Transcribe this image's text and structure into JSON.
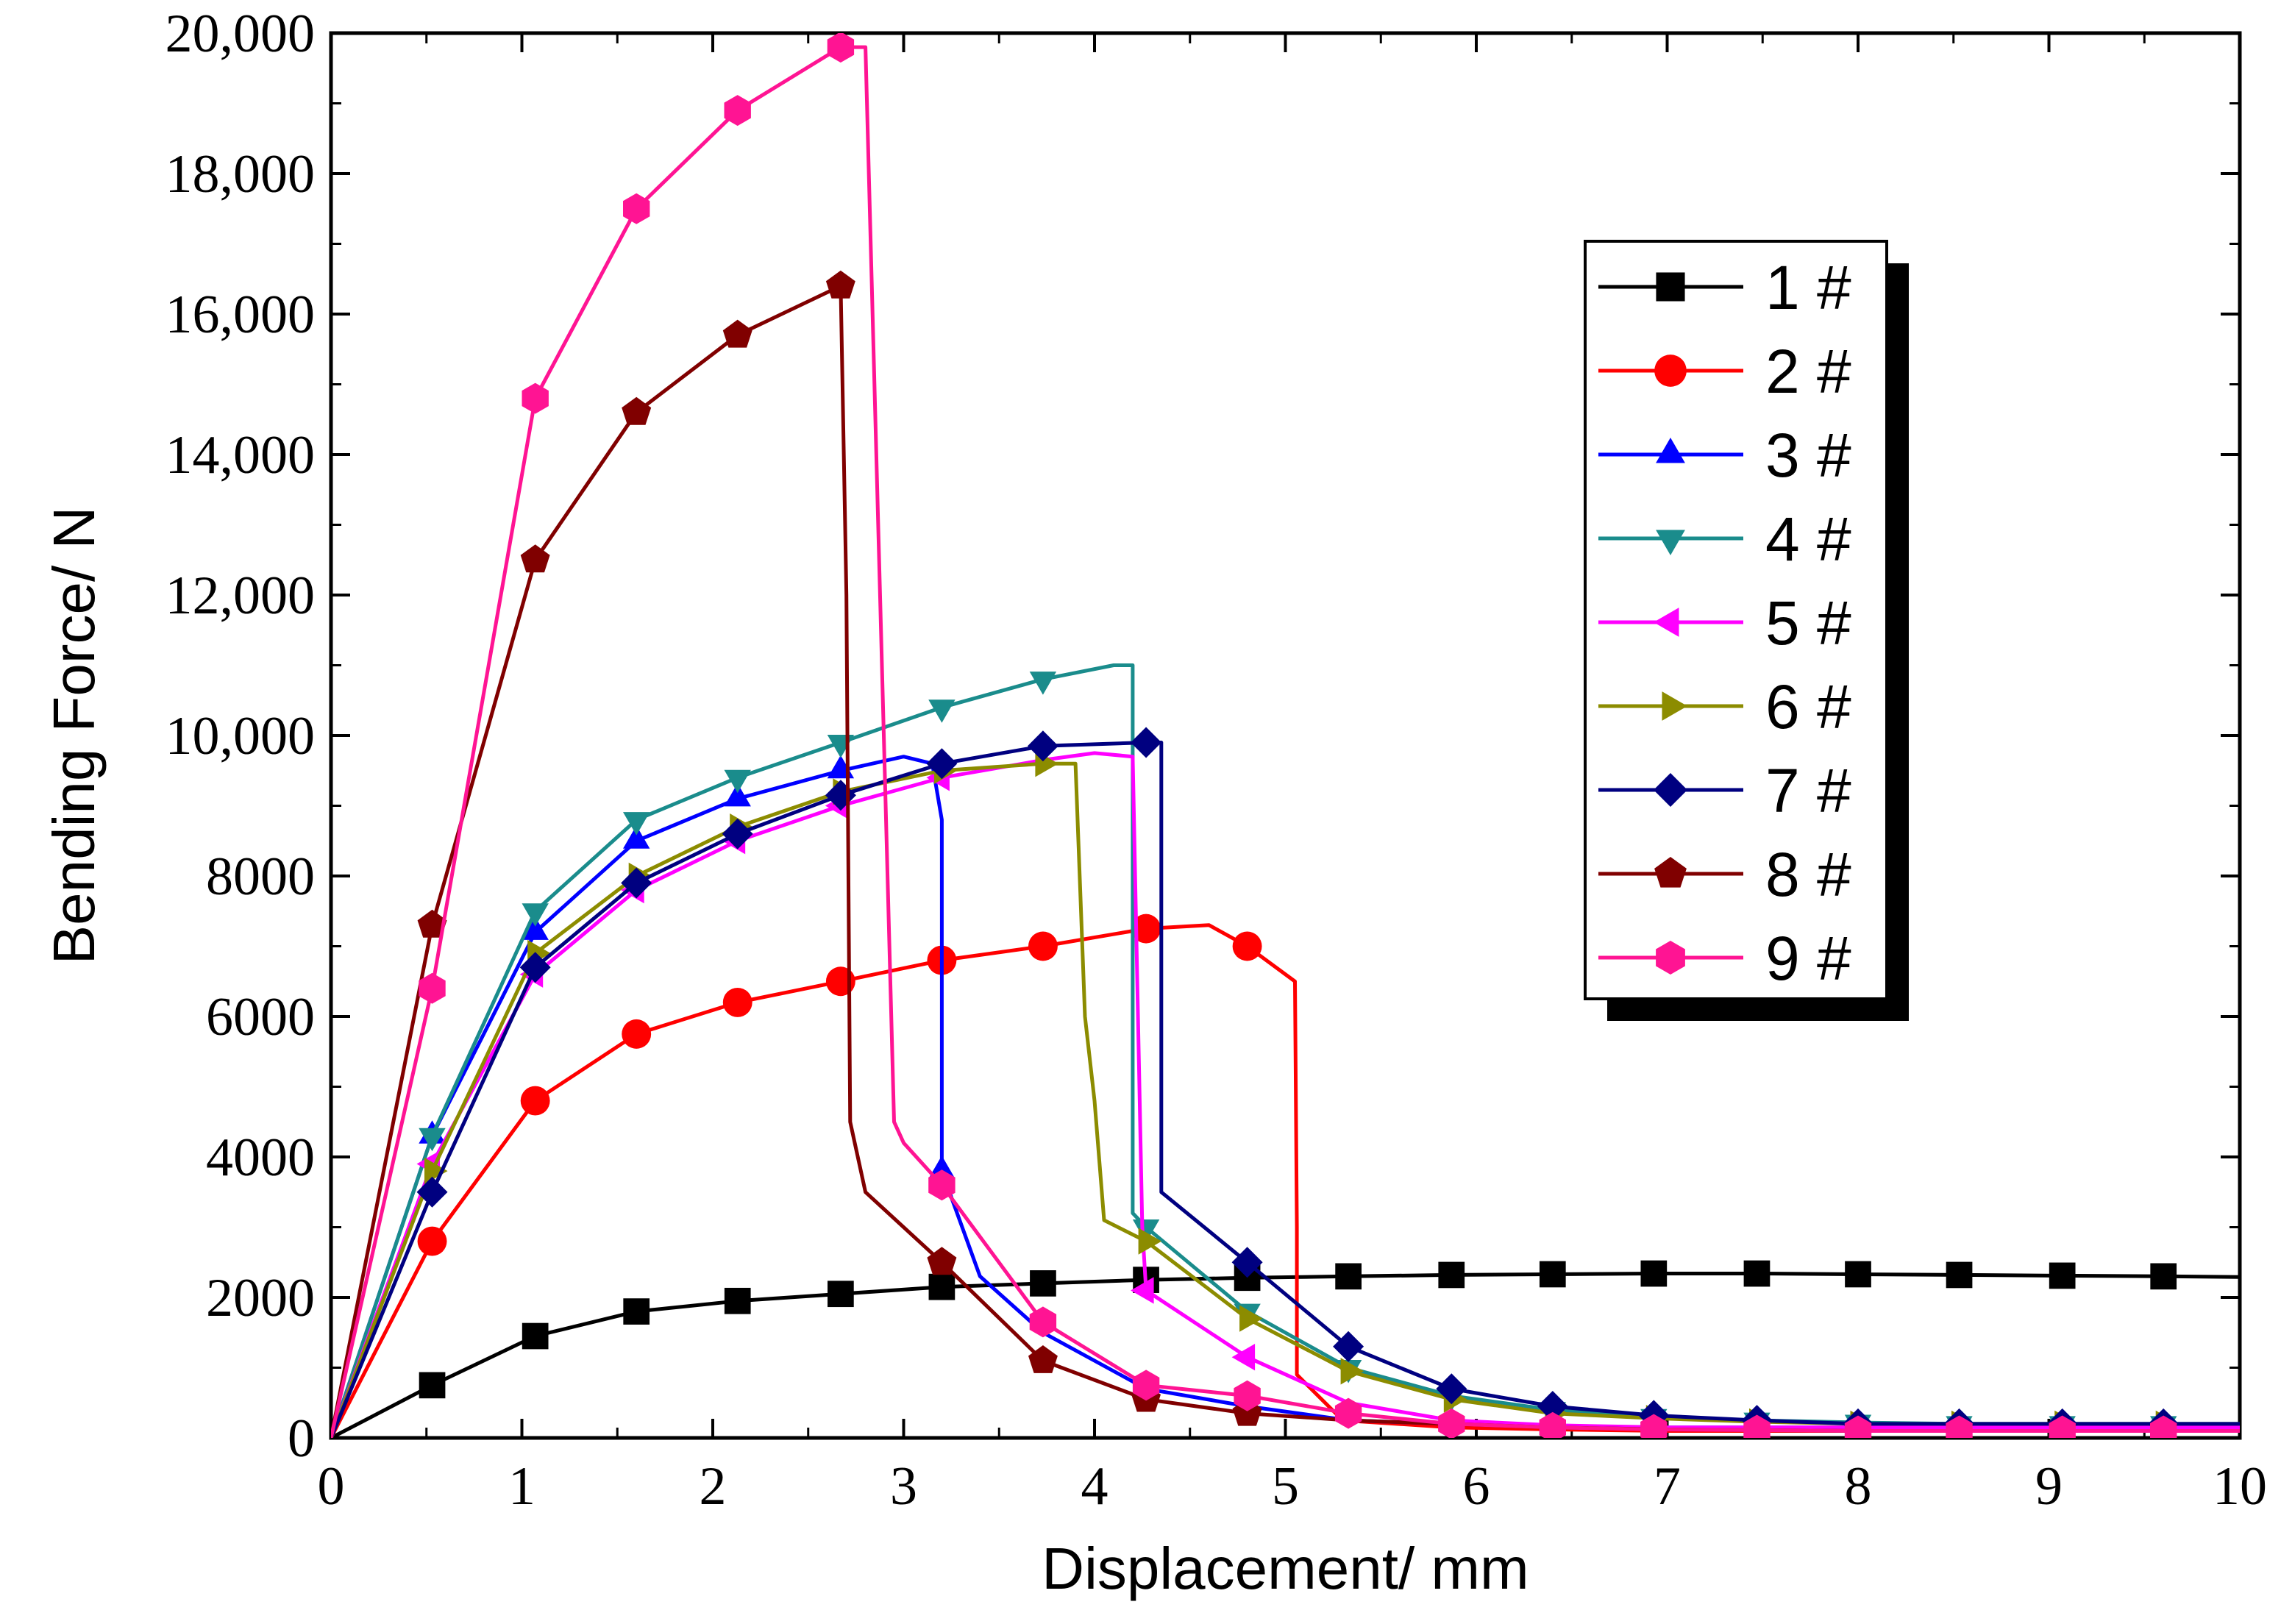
{
  "chart_data": {
    "type": "line",
    "title": "",
    "xlabel": "Displacement/ mm",
    "ylabel": "Bending Force/ N",
    "xlim": [
      0,
      10
    ],
    "ylim": [
      0,
      20000
    ],
    "x_ticks": [
      0,
      1,
      2,
      3,
      4,
      5,
      6,
      7,
      8,
      9,
      10
    ],
    "x_tick_labels": [
      "0",
      "1",
      "2",
      "3",
      "4",
      "5",
      "6",
      "7",
      "8",
      "9",
      "10"
    ],
    "y_ticks": [
      0,
      2000,
      4000,
      6000,
      8000,
      10000,
      12000,
      14000,
      16000,
      18000,
      20000
    ],
    "y_tick_labels": [
      "0",
      "2000",
      "4000",
      "6000",
      "8000",
      "10,000",
      "12,000",
      "14,000",
      "16,000",
      "18,000",
      "20,000"
    ],
    "grid": false,
    "legend_position": "top-right",
    "series": [
      {
        "name": "1 #",
        "color": "#000000",
        "marker": "square",
        "x": [
          0,
          0.53,
          1.07,
          1.6,
          2.13,
          2.67,
          3.2,
          3.73,
          4.27,
          4.8,
          5.33,
          5.87,
          6.4,
          6.93,
          7.47,
          8.0,
          8.53,
          9.07,
          9.6,
          10
        ],
        "y": [
          0,
          750,
          1450,
          1800,
          1950,
          2050,
          2150,
          2200,
          2250,
          2280,
          2300,
          2320,
          2330,
          2340,
          2340,
          2330,
          2320,
          2310,
          2300,
          2290
        ],
        "markers_x": [
          0.53,
          1.07,
          1.6,
          2.13,
          2.67,
          3.2,
          3.73,
          4.27,
          4.8,
          5.33,
          5.87,
          6.4,
          6.93,
          7.47,
          8.0,
          8.53,
          9.07,
          9.6
        ],
        "markers_y": [
          750,
          1450,
          1800,
          1950,
          2050,
          2150,
          2200,
          2250,
          2280,
          2300,
          2320,
          2330,
          2340,
          2340,
          2330,
          2320,
          2310,
          2300
        ]
      },
      {
        "name": "2 #",
        "color": "#ff0000",
        "marker": "circle",
        "x": [
          0,
          0.53,
          1.07,
          1.6,
          2.13,
          2.67,
          3.2,
          3.73,
          4.27,
          4.6,
          4.8,
          5.05,
          5.06,
          5.06,
          5.3,
          5.87,
          6.4,
          7.0,
          8.0,
          9.0,
          10
        ],
        "y": [
          0,
          2800,
          4800,
          5750,
          6200,
          6500,
          6800,
          7000,
          7250,
          7300,
          7000,
          6500,
          3000,
          900,
          250,
          150,
          120,
          100,
          100,
          100,
          100
        ],
        "markers_x": [
          0.53,
          1.07,
          1.6,
          2.13,
          2.67,
          3.2,
          3.73,
          4.27,
          4.8
        ],
        "markers_y": [
          2800,
          4800,
          5750,
          6200,
          6500,
          6800,
          7000,
          7250,
          7000
        ]
      },
      {
        "name": "3 #",
        "color": "#0000ff",
        "marker": "triangle-up",
        "x": [
          0,
          0.53,
          1.07,
          1.6,
          2.13,
          2.67,
          3.0,
          3.15,
          3.2,
          3.2,
          3.4,
          3.73,
          4.27,
          4.8,
          5.33,
          5.87,
          6.4,
          7.0,
          8.0,
          9.0,
          10
        ],
        "y": [
          0,
          4300,
          7200,
          8500,
          9100,
          9500,
          9700,
          9600,
          8800,
          3800,
          2300,
          1500,
          700,
          450,
          250,
          200,
          170,
          150,
          150,
          150,
          150
        ],
        "markers_x": [
          0.53,
          1.07,
          1.6,
          2.13,
          2.67,
          3.2
        ],
        "markers_y": [
          4300,
          7200,
          8500,
          9100,
          9500,
          3800
        ]
      },
      {
        "name": "4 #",
        "color": "#1a8c8c",
        "marker": "triangle-down",
        "x": [
          0,
          0.53,
          1.07,
          1.6,
          2.13,
          2.67,
          3.2,
          3.73,
          4.1,
          4.2,
          4.2,
          4.27,
          4.8,
          5.33,
          5.87,
          6.4,
          6.93,
          7.47,
          8.0,
          8.53,
          9.07,
          9.6,
          10
        ],
        "y": [
          0,
          4300,
          7500,
          8800,
          9400,
          9900,
          10400,
          10800,
          11000,
          11000,
          3200,
          3000,
          1800,
          1000,
          600,
          400,
          300,
          250,
          220,
          200,
          200,
          200,
          200
        ],
        "markers_x": [
          0.53,
          1.07,
          1.6,
          2.13,
          2.67,
          3.2,
          3.73,
          4.27,
          4.8,
          5.33,
          5.87,
          6.4,
          6.93,
          7.47,
          8.0,
          8.53,
          9.07,
          9.6
        ],
        "markers_y": [
          4300,
          7500,
          8800,
          9400,
          9900,
          10400,
          10800,
          3000,
          1800,
          1000,
          600,
          400,
          300,
          250,
          220,
          200,
          200,
          200
        ]
      },
      {
        "name": "5 #",
        "color": "#ff00ff",
        "marker": "triangle-left",
        "x": [
          0,
          0.53,
          1.07,
          1.6,
          2.13,
          2.67,
          3.2,
          3.73,
          4.0,
          4.2,
          4.25,
          4.27,
          4.8,
          5.33,
          5.87,
          6.4,
          7.0,
          8.0,
          9.0,
          10
        ],
        "y": [
          0,
          3900,
          6600,
          7800,
          8500,
          9000,
          9400,
          9650,
          9750,
          9700,
          3000,
          2100,
          1150,
          500,
          250,
          180,
          150,
          150,
          150,
          150
        ],
        "markers_x": [
          0.53,
          1.07,
          1.6,
          2.13,
          2.67,
          3.2,
          4.27,
          4.8
        ],
        "markers_y": [
          3900,
          6600,
          7800,
          8500,
          9000,
          9400,
          2100,
          1150
        ]
      },
      {
        "name": "6 #",
        "color": "#8c8c00",
        "marker": "triangle-right",
        "x": [
          0,
          0.53,
          1.07,
          1.6,
          2.13,
          2.67,
          3.2,
          3.73,
          3.9,
          3.95,
          4.0,
          4.05,
          4.27,
          4.8,
          5.33,
          5.87,
          6.4,
          6.93,
          7.47,
          8.0,
          8.53,
          9.07,
          9.6,
          10
        ],
        "y": [
          0,
          3800,
          6900,
          8000,
          8700,
          9200,
          9500,
          9600,
          9600,
          6000,
          4800,
          3100,
          2800,
          1700,
          950,
          550,
          350,
          280,
          230,
          200,
          200,
          200,
          200,
          200
        ],
        "markers_x": [
          0.53,
          1.07,
          1.6,
          2.13,
          2.67,
          3.2,
          3.73,
          4.27,
          4.8,
          5.33,
          5.87,
          6.4,
          6.93,
          7.47,
          8.0,
          8.53,
          9.07,
          9.6
        ],
        "markers_y": [
          3800,
          6900,
          8000,
          8700,
          9200,
          9500,
          9600,
          2800,
          1700,
          950,
          550,
          350,
          280,
          230,
          200,
          200,
          200,
          200
        ]
      },
      {
        "name": "7 #",
        "color": "#000080",
        "marker": "diamond",
        "x": [
          0,
          0.53,
          1.07,
          1.6,
          2.13,
          2.67,
          3.2,
          3.73,
          4.27,
          4.35,
          4.35,
          4.8,
          5.33,
          5.87,
          6.4,
          6.93,
          7.47,
          8.0,
          8.53,
          9.07,
          9.6,
          10
        ],
        "y": [
          0,
          3500,
          6700,
          7900,
          8600,
          9150,
          9600,
          9850,
          9900,
          9900,
          3500,
          2500,
          1300,
          700,
          450,
          320,
          250,
          200,
          200,
          200,
          200,
          200
        ],
        "markers_x": [
          0.53,
          1.07,
          1.6,
          2.13,
          2.67,
          3.2,
          3.73,
          4.27,
          4.8,
          5.33,
          5.87,
          6.4,
          6.93,
          7.47,
          8.0,
          8.53,
          9.07,
          9.6
        ],
        "markers_y": [
          3500,
          6700,
          7900,
          8600,
          9150,
          9600,
          9850,
          9900,
          2500,
          1300,
          700,
          450,
          320,
          250,
          200,
          200,
          200,
          200
        ]
      },
      {
        "name": "8 #",
        "color": "#800000",
        "marker": "pentagon",
        "x": [
          0,
          0.53,
          1.07,
          1.6,
          2.13,
          2.67,
          2.7,
          2.72,
          2.8,
          3.2,
          3.73,
          4.27,
          4.8,
          5.33,
          5.87,
          6.4,
          7.0,
          8.0,
          9.0,
          10
        ],
        "y": [
          0,
          7300,
          12500,
          14600,
          15700,
          16400,
          12000,
          4500,
          3500,
          2500,
          1100,
          550,
          350,
          250,
          200,
          150,
          120,
          100,
          100,
          100
        ],
        "markers_x": [
          0.53,
          1.07,
          1.6,
          2.13,
          2.67,
          3.2,
          3.73,
          4.27,
          4.8
        ],
        "markers_y": [
          7300,
          12500,
          14600,
          15700,
          16400,
          2500,
          1100,
          550,
          350
        ]
      },
      {
        "name": "9 #",
        "color": "#ff1493",
        "marker": "hexagon",
        "x": [
          0,
          0.53,
          1.07,
          1.6,
          2.13,
          2.67,
          2.8,
          2.95,
          3.0,
          3.2,
          3.73,
          4.27,
          4.8,
          5.33,
          5.87,
          6.4,
          6.93,
          7.47,
          8.0,
          8.53,
          9.07,
          9.6,
          10
        ],
        "y": [
          0,
          6400,
          14800,
          17500,
          18900,
          19800,
          19800,
          4500,
          4200,
          3600,
          1650,
          750,
          600,
          350,
          200,
          150,
          120,
          110,
          100,
          100,
          100,
          100,
          100
        ],
        "markers_x": [
          0.53,
          1.07,
          1.6,
          2.13,
          2.67,
          3.2,
          3.73,
          4.27,
          4.8,
          5.33,
          5.87,
          6.4,
          6.93,
          7.47,
          8.0,
          8.53,
          9.07,
          9.6
        ],
        "markers_y": [
          6400,
          14800,
          17500,
          18900,
          19800,
          3600,
          1650,
          750,
          600,
          350,
          200,
          150,
          120,
          110,
          100,
          100,
          100,
          100
        ]
      }
    ]
  }
}
